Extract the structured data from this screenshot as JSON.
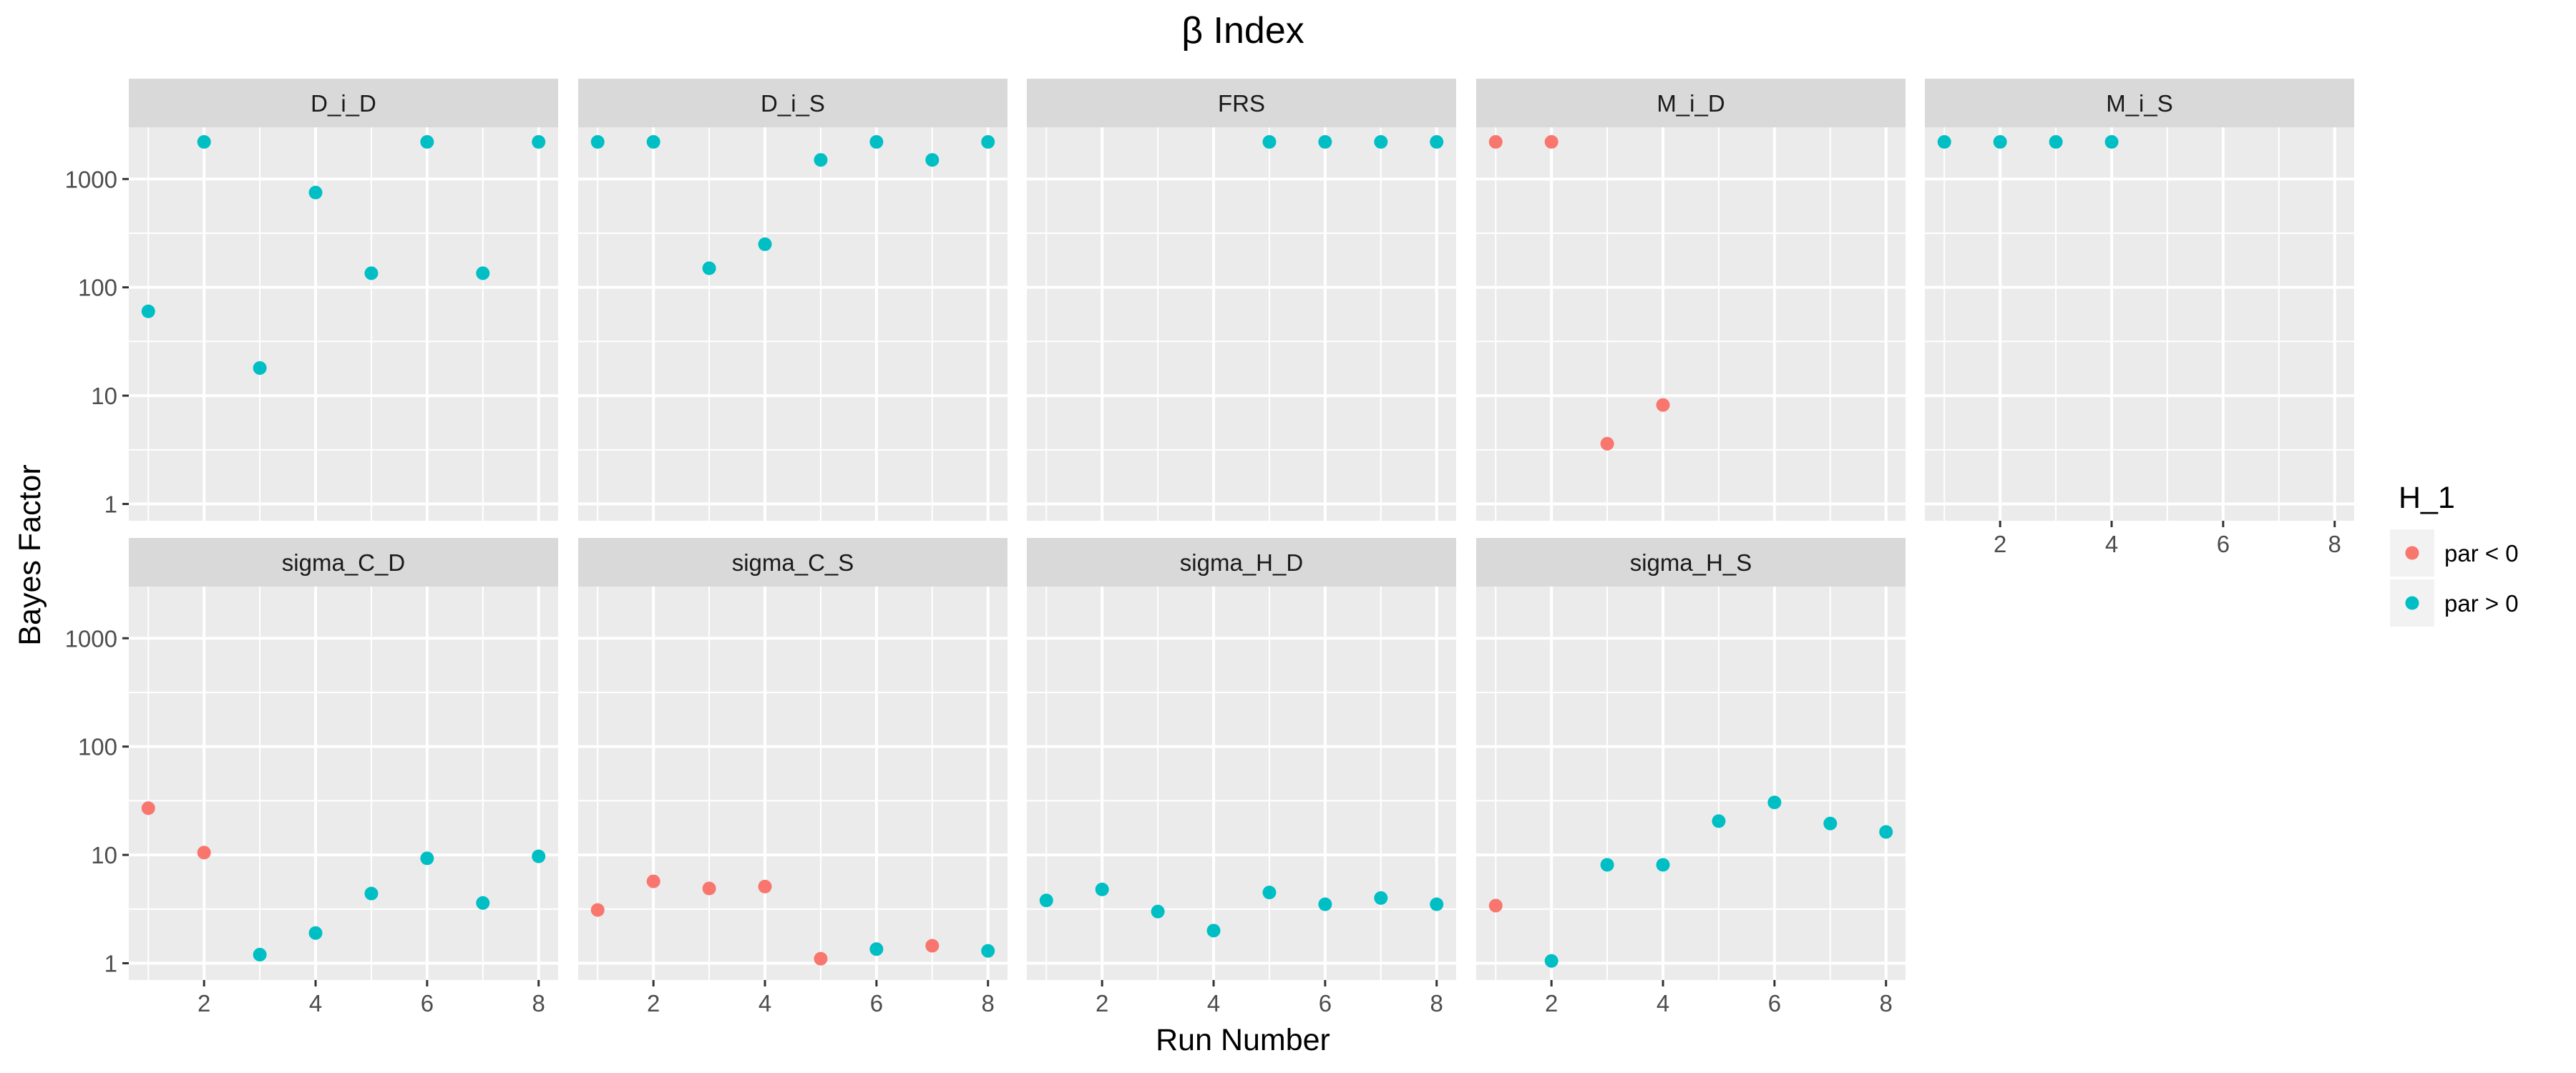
{
  "chart_data": {
    "type": "scatter",
    "title": "β Index",
    "xlabel": "Run Number",
    "ylabel": "Bayes Factor",
    "x_ticks": [
      2,
      4,
      6,
      8
    ],
    "xlim": [
      0.65,
      8.35
    ],
    "y_scale": "log10",
    "y_ticks": [
      1,
      10,
      100,
      1000
    ],
    "y_tick_labels": [
      "1",
      "10",
      "100",
      "1000"
    ],
    "ylim": [
      0.7,
      3000
    ],
    "grid": true,
    "facets": "wrap, 5 columns, 2 rows; x-axis labels shown on bottom panel of each column",
    "legend": {
      "title": "H_1",
      "position": "right",
      "entries": [
        {
          "label": "par < 0",
          "color": "#F8766D"
        },
        {
          "label": "par > 0",
          "color": "#00BFC4"
        }
      ]
    },
    "panels": [
      {
        "name": "D_i_D",
        "points": [
          {
            "x": 1,
            "y": 60,
            "h": "par > 0"
          },
          {
            "x": 2,
            "y": 2200,
            "h": "par > 0"
          },
          {
            "x": 3,
            "y": 18,
            "h": "par > 0"
          },
          {
            "x": 4,
            "y": 750,
            "h": "par > 0"
          },
          {
            "x": 5,
            "y": 135,
            "h": "par > 0"
          },
          {
            "x": 6,
            "y": 2200,
            "h": "par > 0"
          },
          {
            "x": 7,
            "y": 135,
            "h": "par > 0"
          },
          {
            "x": 8,
            "y": 2200,
            "h": "par > 0"
          }
        ]
      },
      {
        "name": "D_i_S",
        "points": [
          {
            "x": 1,
            "y": 2200,
            "h": "par > 0"
          },
          {
            "x": 2,
            "y": 2200,
            "h": "par > 0"
          },
          {
            "x": 3,
            "y": 150,
            "h": "par > 0"
          },
          {
            "x": 4,
            "y": 250,
            "h": "par > 0"
          },
          {
            "x": 5,
            "y": 1500,
            "h": "par > 0"
          },
          {
            "x": 6,
            "y": 2200,
            "h": "par > 0"
          },
          {
            "x": 7,
            "y": 1500,
            "h": "par > 0"
          },
          {
            "x": 8,
            "y": 2200,
            "h": "par > 0"
          }
        ]
      },
      {
        "name": "FRS",
        "points": [
          {
            "x": 5,
            "y": 2200,
            "h": "par > 0"
          },
          {
            "x": 6,
            "y": 2200,
            "h": "par > 0"
          },
          {
            "x": 7,
            "y": 2200,
            "h": "par > 0"
          },
          {
            "x": 8,
            "y": 2200,
            "h": "par > 0"
          }
        ]
      },
      {
        "name": "M_i_D",
        "points": [
          {
            "x": 1,
            "y": 2200,
            "h": "par < 0"
          },
          {
            "x": 2,
            "y": 2200,
            "h": "par < 0"
          },
          {
            "x": 3,
            "y": 3.6,
            "h": "par < 0"
          },
          {
            "x": 4,
            "y": 8.2,
            "h": "par < 0"
          }
        ]
      },
      {
        "name": "M_i_S",
        "points": [
          {
            "x": 1,
            "y": 2200,
            "h": "par > 0"
          },
          {
            "x": 2,
            "y": 2200,
            "h": "par > 0"
          },
          {
            "x": 3,
            "y": 2200,
            "h": "par > 0"
          },
          {
            "x": 4,
            "y": 2200,
            "h": "par > 0"
          }
        ]
      },
      {
        "name": "sigma_C_D",
        "points": [
          {
            "x": 1,
            "y": 27,
            "h": "par < 0"
          },
          {
            "x": 2,
            "y": 10.5,
            "h": "par < 0"
          },
          {
            "x": 3,
            "y": 1.2,
            "h": "par > 0"
          },
          {
            "x": 4,
            "y": 1.9,
            "h": "par > 0"
          },
          {
            "x": 5,
            "y": 4.4,
            "h": "par > 0"
          },
          {
            "x": 6,
            "y": 9.3,
            "h": "par > 0"
          },
          {
            "x": 7,
            "y": 3.6,
            "h": "par > 0"
          },
          {
            "x": 8,
            "y": 9.7,
            "h": "par > 0"
          }
        ]
      },
      {
        "name": "sigma_C_S",
        "points": [
          {
            "x": 1,
            "y": 3.1,
            "h": "par < 0"
          },
          {
            "x": 2,
            "y": 5.7,
            "h": "par < 0"
          },
          {
            "x": 3,
            "y": 4.9,
            "h": "par < 0"
          },
          {
            "x": 4,
            "y": 5.1,
            "h": "par < 0"
          },
          {
            "x": 5,
            "y": 1.1,
            "h": "par < 0"
          },
          {
            "x": 6,
            "y": 1.35,
            "h": "par > 0"
          },
          {
            "x": 7,
            "y": 1.45,
            "h": "par < 0"
          },
          {
            "x": 8,
            "y": 1.3,
            "h": "par > 0"
          }
        ]
      },
      {
        "name": "sigma_H_D",
        "points": [
          {
            "x": 1,
            "y": 3.8,
            "h": "par > 0"
          },
          {
            "x": 2,
            "y": 4.8,
            "h": "par > 0"
          },
          {
            "x": 3,
            "y": 3.0,
            "h": "par > 0"
          },
          {
            "x": 4,
            "y": 2.0,
            "h": "par > 0"
          },
          {
            "x": 5,
            "y": 4.5,
            "h": "par > 0"
          },
          {
            "x": 6,
            "y": 3.5,
            "h": "par > 0"
          },
          {
            "x": 7,
            "y": 4.0,
            "h": "par > 0"
          },
          {
            "x": 8,
            "y": 3.5,
            "h": "par > 0"
          }
        ]
      },
      {
        "name": "sigma_H_S",
        "points": [
          {
            "x": 1,
            "y": 3.4,
            "h": "par < 0"
          },
          {
            "x": 2,
            "y": 1.05,
            "h": "par > 0"
          },
          {
            "x": 3,
            "y": 8.1,
            "h": "par > 0"
          },
          {
            "x": 4,
            "y": 8.1,
            "h": "par > 0"
          },
          {
            "x": 5,
            "y": 20.5,
            "h": "par > 0"
          },
          {
            "x": 6,
            "y": 30.5,
            "h": "par > 0"
          },
          {
            "x": 7,
            "y": 19.5,
            "h": "par > 0"
          },
          {
            "x": 8,
            "y": 16.3,
            "h": "par > 0"
          }
        ]
      }
    ]
  }
}
